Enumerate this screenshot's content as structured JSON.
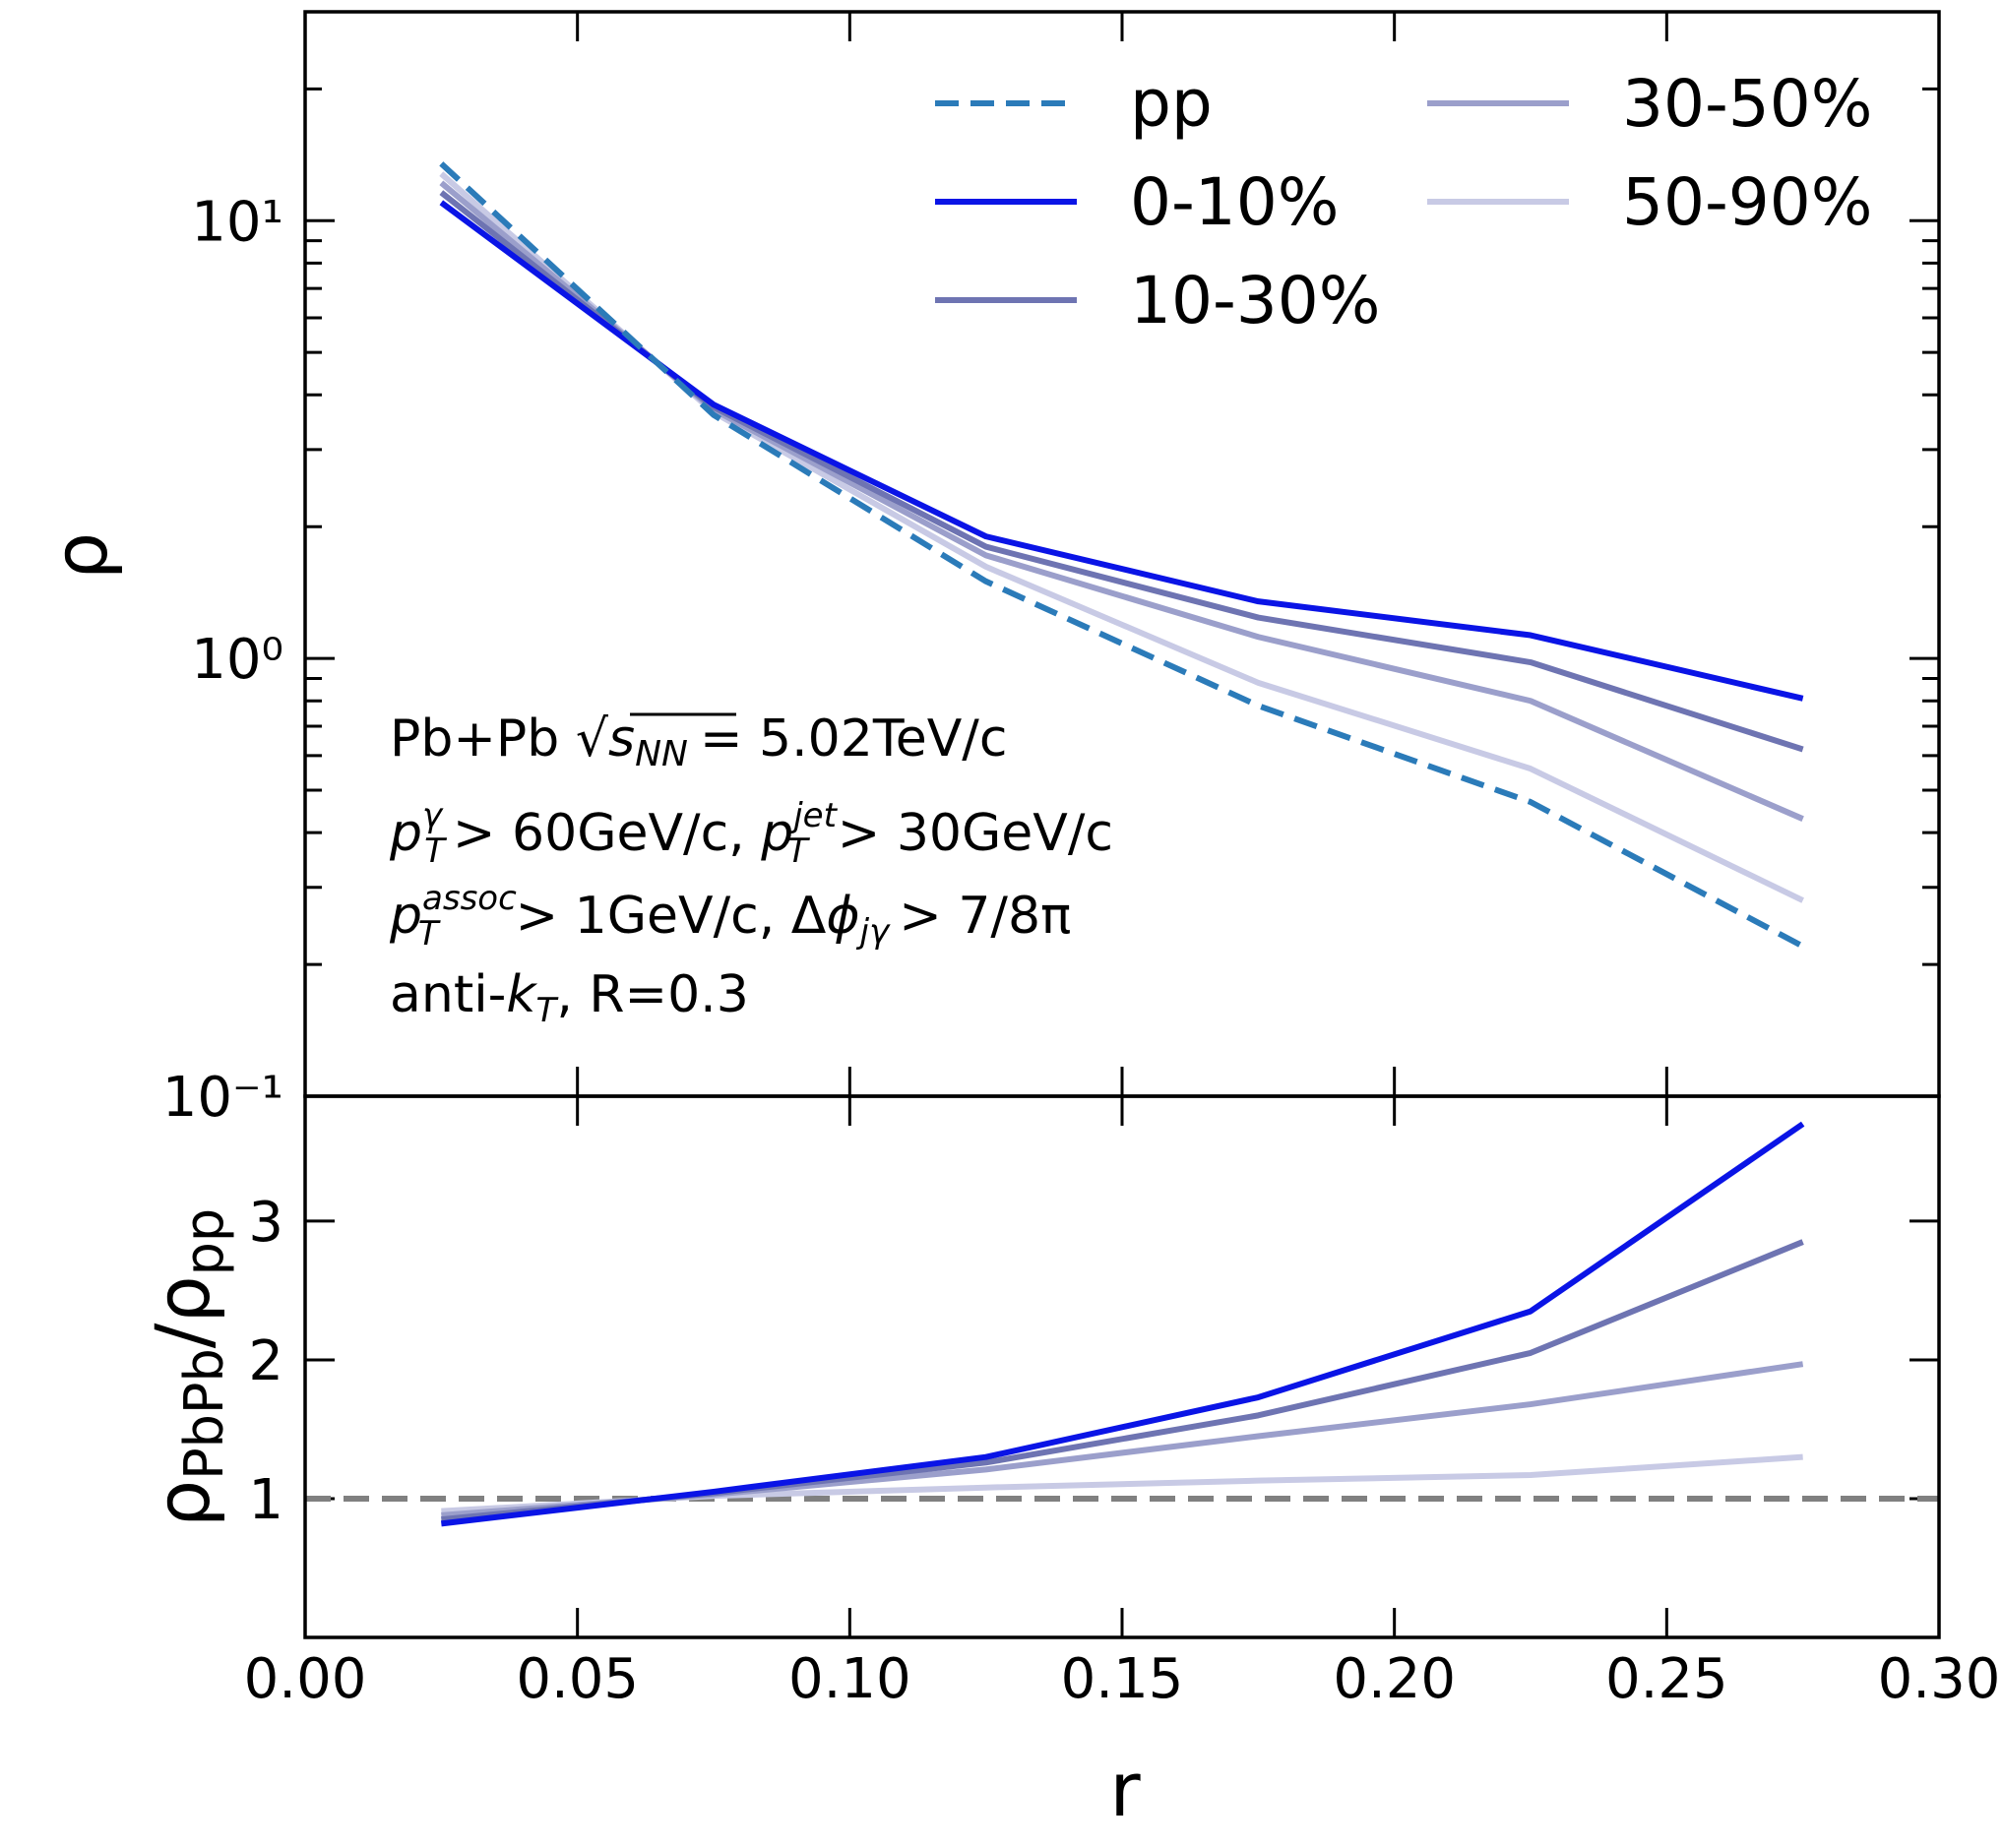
{
  "chart_data": [
    {
      "type": "line",
      "panel": "top",
      "xlabel": "",
      "ylabel": "ρ",
      "xlim": [
        0.0,
        0.3
      ],
      "ylim": [
        0.1,
        30
      ],
      "yscale": "log",
      "ytick_labels": [
        "10⁻¹",
        "10⁰",
        "10¹"
      ],
      "x": [
        0.025,
        0.075,
        0.125,
        0.175,
        0.225,
        0.275
      ],
      "series": [
        {
          "name": "pp",
          "color": "#2b7bb9",
          "dashed": true,
          "values": [
            13.5,
            3.6,
            1.5,
            0.78,
            0.47,
            0.22
          ]
        },
        {
          "name": "0-10%",
          "color": "#0a14e6",
          "dashed": false,
          "values": [
            11.0,
            3.8,
            1.9,
            1.35,
            1.13,
            0.81
          ]
        },
        {
          "name": "10-30%",
          "color": "#6e74b2",
          "dashed": false,
          "values": [
            11.6,
            3.75,
            1.8,
            1.24,
            0.98,
            0.62
          ]
        },
        {
          "name": "30-50%",
          "color": "#9b9fcb",
          "dashed": false,
          "values": [
            12.2,
            3.7,
            1.72,
            1.12,
            0.8,
            0.43
          ]
        },
        {
          "name": "50-90%",
          "color": "#c8cae5",
          "dashed": false,
          "values": [
            12.8,
            3.65,
            1.62,
            0.88,
            0.56,
            0.28
          ]
        }
      ],
      "legend_placement": "top-right",
      "annotations": {
        "line1_a": "Pb+Pb ",
        "line1_b": "= 5.02TeV/c",
        "line2_a": "> 60GeV/c, ",
        "line2_b": "> 30GeV/c",
        "line3_a": "> 1GeV/c, Δ",
        "line3_b": ">  7/8π",
        "line4_a": "anti-",
        "line4_b": ", R=0.3",
        "s": "s",
        "nn": "NN",
        "p": "p",
        "T": "T",
        "gamma": "γ",
        "jet": "jet",
        "assoc": "assoc",
        "phi": "ϕ",
        "jg": "jγ",
        "k": "k"
      }
    },
    {
      "type": "line",
      "panel": "bottom",
      "xlabel": "r",
      "ylabel_parts": [
        "ρ",
        "PbPb",
        "/ρ",
        "pp"
      ],
      "xlim": [
        0.0,
        0.3
      ],
      "ylim": [
        0.0,
        3.9
      ],
      "x_ticks": [
        0.0,
        0.05,
        0.1,
        0.15,
        0.2,
        0.25,
        0.3
      ],
      "x_tick_labels": [
        "0.00",
        "0.05",
        "0.10",
        "0.15",
        "0.20",
        "0.25",
        "0.30"
      ],
      "y_ticks": [
        1,
        2,
        3
      ],
      "y_tick_labels": [
        "1",
        "2",
        "3"
      ],
      "reference_line": {
        "value": 1.0,
        "color": "#808080",
        "dashed": true
      },
      "x": [
        0.025,
        0.075,
        0.125,
        0.175,
        0.225,
        0.275
      ],
      "series": [
        {
          "name": "0-10%",
          "color": "#0a14e6",
          "values": [
            0.82,
            1.05,
            1.3,
            1.73,
            2.35,
            3.7
          ]
        },
        {
          "name": "10-30%",
          "color": "#6e74b2",
          "values": [
            0.85,
            1.04,
            1.26,
            1.6,
            2.05,
            2.85
          ]
        },
        {
          "name": "30-50%",
          "color": "#9b9fcb",
          "values": [
            0.88,
            1.03,
            1.21,
            1.45,
            1.68,
            1.97
          ]
        },
        {
          "name": "50-90%",
          "color": "#c8cae5",
          "values": [
            0.91,
            1.02,
            1.08,
            1.13,
            1.17,
            1.3
          ]
        }
      ]
    }
  ]
}
